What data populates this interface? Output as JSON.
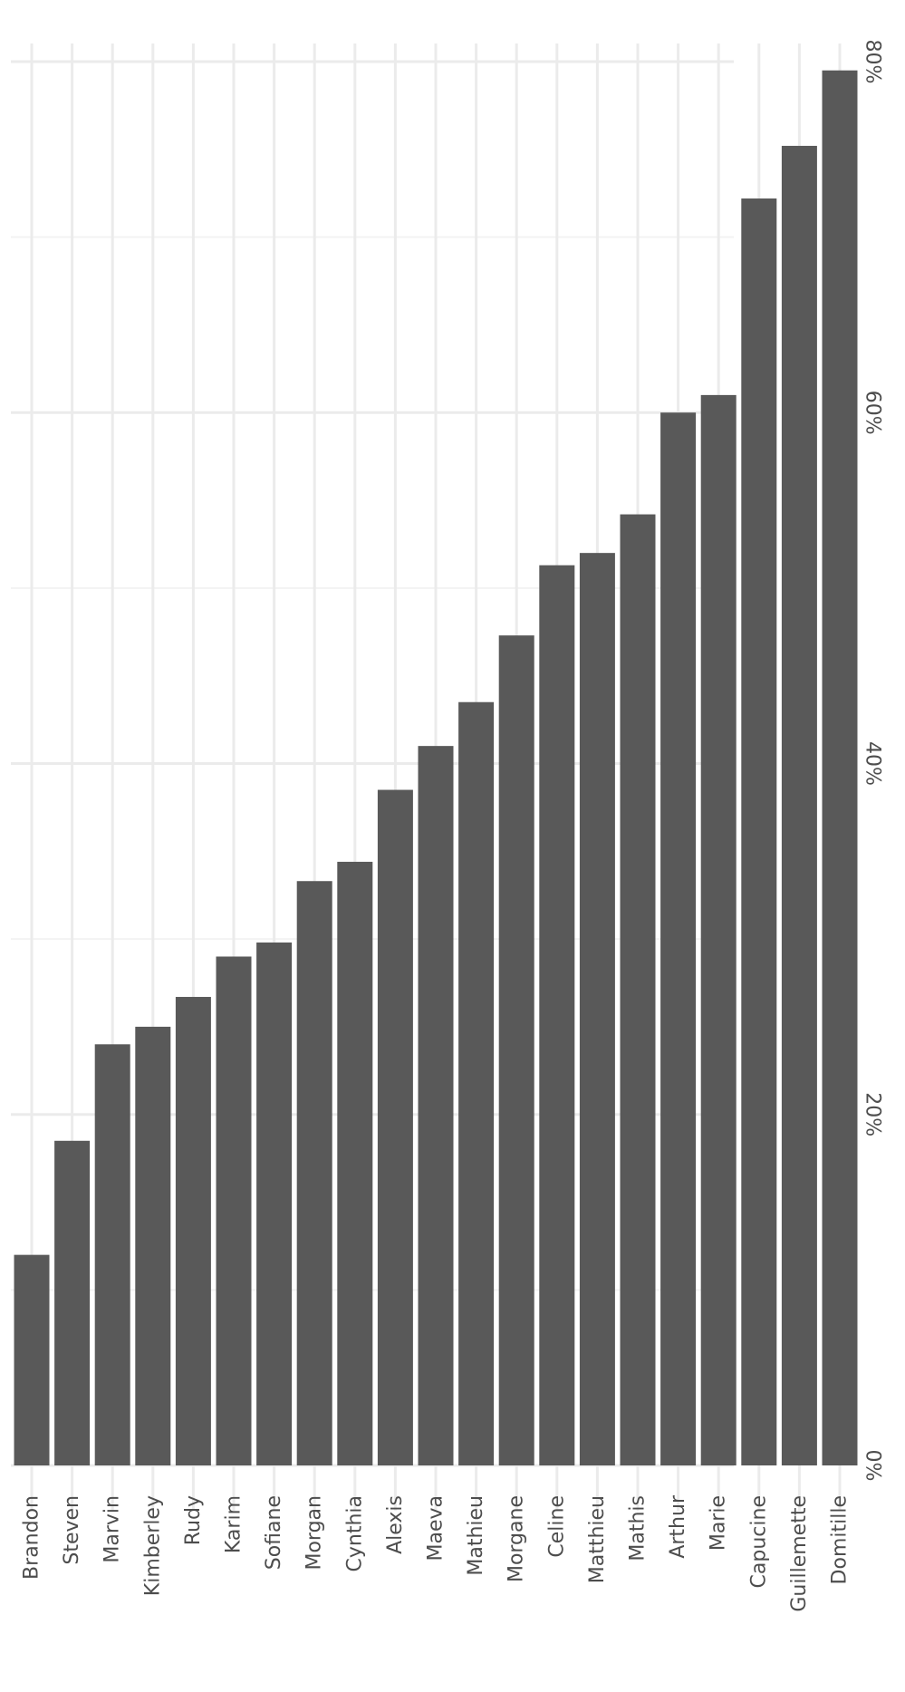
{
  "chart_data": {
    "type": "bar",
    "orientation": "vertical (rotated 90° clockwise in image)",
    "categories": [
      "Brandon",
      "Steven",
      "Marvin",
      "Kimberley",
      "Rudy",
      "Karim",
      "Sofiane",
      "Morgan",
      "Cynthia",
      "Alexis",
      "Maeva",
      "Mathieu",
      "Morgane",
      "Celine",
      "Matthieu",
      "Mathis",
      "Arthur",
      "Marie",
      "Capucine",
      "Guillemette",
      "Domitille"
    ],
    "values": [
      12,
      18.5,
      24,
      25,
      26.7,
      29,
      29.8,
      33.3,
      34.4,
      38.5,
      41,
      43.5,
      47.3,
      51.3,
      52,
      54.2,
      60,
      61,
      72.2,
      75.2,
      79.5
    ],
    "ylim": [
      0,
      80
    ],
    "yticks": [
      "0%",
      "20%",
      "40%",
      "60%",
      "80%"
    ],
    "ytick_values": [
      0,
      20,
      40,
      60,
      80
    ],
    "grid": true,
    "bar_color": "#595959",
    "title": "",
    "xlabel": "",
    "ylabel": ""
  }
}
